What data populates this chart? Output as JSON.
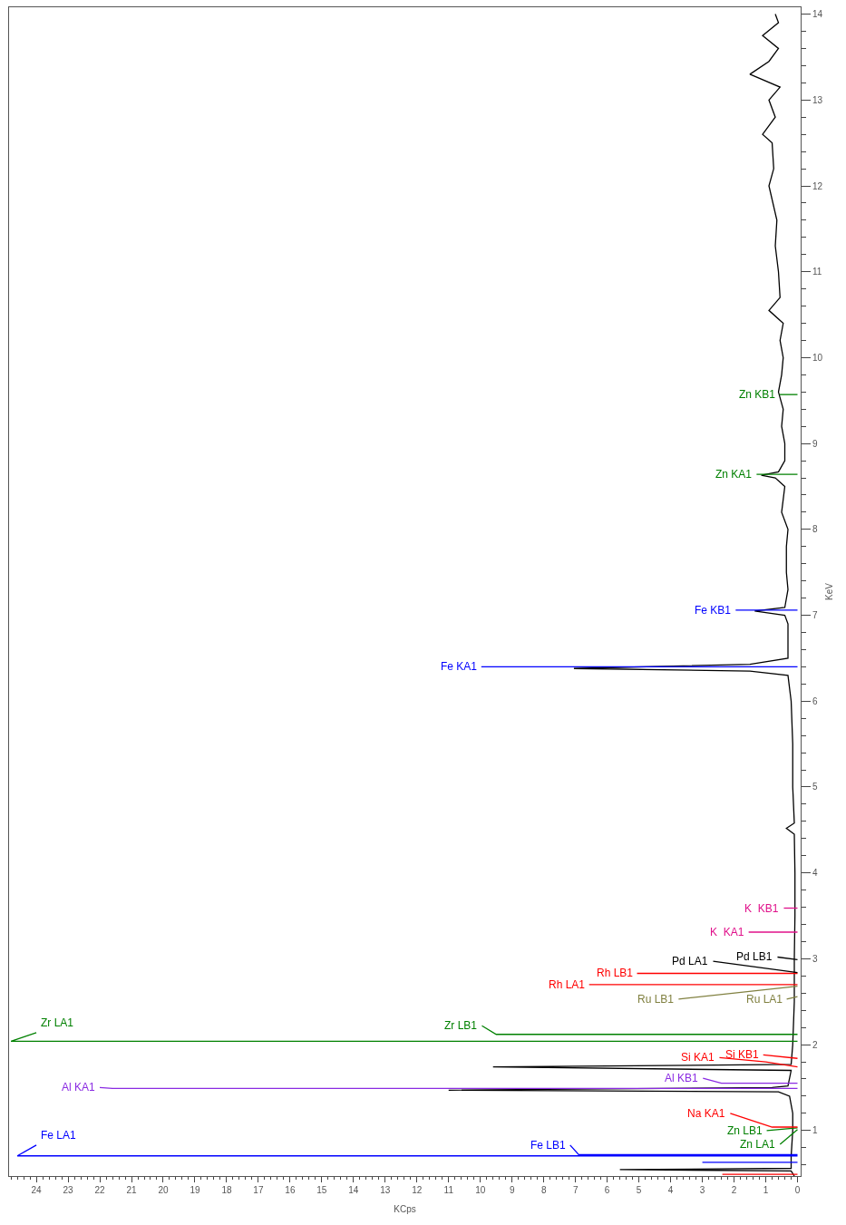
{
  "chart_data": {
    "type": "line",
    "orientation": "horizontal",
    "xlabel": "KCps",
    "ylabel": "KeV",
    "xlim": [
      24.86,
      -0.1
    ],
    "xticks": [
      0,
      1,
      2,
      3,
      4,
      5,
      6,
      7,
      8,
      9,
      10,
      11,
      12,
      13,
      14,
      15,
      16,
      17,
      18,
      19,
      20,
      21,
      22,
      23,
      24
    ],
    "ylim": [
      0.47,
      14.08
    ],
    "yticks": [
      1,
      2,
      3,
      4,
      5,
      6,
      7,
      8,
      9,
      10,
      11,
      12,
      13,
      14
    ],
    "grid": false,
    "legend": false,
    "line_style": "solid",
    "marker": "none",
    "series": [
      {
        "color": "#000000",
        "x": [
          0.47,
          0.53,
          0.545,
          0.56,
          0.7,
          1.0,
          1.2,
          1.4,
          1.45,
          1.47,
          1.5,
          1.52,
          1.7,
          1.74,
          1.77,
          2.0,
          2.5,
          3.0,
          3.5,
          4.0,
          4.45,
          4.52,
          4.58,
          5.0,
          5.5,
          6.0,
          6.3,
          6.35,
          6.38,
          6.43,
          6.5,
          6.9,
          7.0,
          7.05,
          7.09,
          7.3,
          7.5,
          7.8,
          8.0,
          8.2,
          8.5,
          8.6,
          8.63,
          8.67,
          8.8,
          9.0,
          9.2,
          9.4,
          9.6,
          9.8,
          10.0,
          10.2,
          10.4,
          10.55,
          10.7,
          11.0,
          11.3,
          11.6,
          12.0,
          12.2,
          12.5,
          12.6,
          12.8,
          13.0,
          13.15,
          13.3,
          13.45,
          13.6,
          13.75,
          13.9,
          14.0
        ],
        "values": [
          0.1,
          0.2,
          5.6,
          0.2,
          0.2,
          0.15,
          0.15,
          0.25,
          0.6,
          11.0,
          0.8,
          0.3,
          0.2,
          9.6,
          0.2,
          0.15,
          0.1,
          0.1,
          0.08,
          0.08,
          0.1,
          0.35,
          0.1,
          0.15,
          0.15,
          0.2,
          0.3,
          1.5,
          7.05,
          1.5,
          0.3,
          0.3,
          0.4,
          1.35,
          0.4,
          0.3,
          0.35,
          0.35,
          0.3,
          0.5,
          0.4,
          0.7,
          1.14,
          0.6,
          0.4,
          0.4,
          0.5,
          0.45,
          0.6,
          0.5,
          0.45,
          0.55,
          0.45,
          0.9,
          0.55,
          0.6,
          0.7,
          0.65,
          0.9,
          0.75,
          0.8,
          1.1,
          0.7,
          0.9,
          0.55,
          1.5,
          0.9,
          0.6,
          1.1,
          0.6,
          0.7
        ]
      },
      {
        "color": "#ff0000",
        "x": [
          0.49,
          0.49
        ],
        "values": [
          0,
          2.37
        ]
      },
      {
        "color": "#0000ff",
        "x": [
          0.63,
          0.63
        ],
        "values": [
          0,
          3.0
        ]
      },
      {
        "name": "Fe LA1",
        "color": "#0000ff",
        "x": [
          0.705,
          0.705,
          0.83
        ],
        "values": [
          0,
          24.6,
          24.0
        ]
      },
      {
        "name": "Fe LB1",
        "color": "#0000ff",
        "x": [
          0.72,
          0.72,
          0.83
        ],
        "values": [
          0,
          6.9,
          7.17
        ]
      },
      {
        "name": "Zn LA1",
        "color": "#008000",
        "x": [
          1.01,
          0.84
        ],
        "values": [
          0,
          0.55
        ]
      },
      {
        "name": "Zn LB1",
        "color": "#008000",
        "x": [
          1.03,
          1.0
        ],
        "values": [
          0,
          0.97
        ]
      },
      {
        "name": "Na KA1",
        "color": "#ff0000",
        "x": [
          1.04,
          1.04,
          1.2
        ],
        "values": [
          0,
          0.8,
          2.12
        ]
      },
      {
        "name": "Al KA1",
        "color": "#8a2be2",
        "x": [
          1.49,
          1.49,
          1.5
        ],
        "values": [
          0,
          21.6,
          22.0
        ]
      },
      {
        "name": "Al KB1",
        "color": "#8a2be2",
        "x": [
          1.55,
          1.55,
          1.61
        ],
        "values": [
          0,
          2.4,
          2.98
        ]
      },
      {
        "name": "Si KA1",
        "color": "#ff0000",
        "x": [
          1.74,
          1.8,
          1.85
        ],
        "values": [
          0,
          1.0,
          2.46
        ]
      },
      {
        "name": "Si KB1",
        "color": "#ff0000",
        "x": [
          1.84,
          1.88
        ],
        "values": [
          0,
          1.08
        ]
      },
      {
        "name": "Zr LA1",
        "color": "#008000",
        "x": [
          2.04,
          2.04,
          2.14
        ],
        "values": [
          0,
          24.8,
          24.0
        ]
      },
      {
        "name": "Zr LB1",
        "color": "#008000",
        "x": [
          2.12,
          2.12,
          2.22
        ],
        "values": [
          0,
          9.5,
          9.95
        ]
      },
      {
        "name": "Ru LA1",
        "color": "#808040",
        "x": [
          2.56,
          2.53
        ],
        "values": [
          0,
          0.34
        ]
      },
      {
        "name": "Ru LB1",
        "color": "#808040",
        "x": [
          2.68,
          2.53
        ],
        "values": [
          0,
          3.75
        ]
      },
      {
        "name": "Rh LA1",
        "color": "#ff0000",
        "x": [
          2.7,
          2.7
        ],
        "values": [
          0,
          6.57
        ]
      },
      {
        "name": "Rh LB1",
        "color": "#ff0000",
        "x": [
          2.83,
          2.83
        ],
        "values": [
          0,
          5.06
        ]
      },
      {
        "name": "Pd LA1",
        "color": "#000000",
        "x": [
          2.84,
          2.97
        ],
        "values": [
          0,
          2.66
        ]
      },
      {
        "name": "Pd LB1",
        "color": "#000000",
        "x": [
          2.99,
          3.02
        ],
        "values": [
          0,
          0.63
        ]
      },
      {
        "name": "K  KA1",
        "color": "#e0108a",
        "x": [
          3.31,
          3.31
        ],
        "values": [
          0,
          1.54
        ]
      },
      {
        "name": "K  KB1",
        "color": "#e0108a",
        "x": [
          3.59,
          3.59
        ],
        "values": [
          0,
          0.43
        ]
      },
      {
        "name": "Fe KA1",
        "color": "#0000ff",
        "x": [
          6.4,
          6.4
        ],
        "values": [
          0,
          9.97
        ]
      },
      {
        "name": "Fe KB1",
        "color": "#0000ff",
        "x": [
          7.06,
          7.06
        ],
        "values": [
          0,
          1.95
        ]
      },
      {
        "name": "Zn KA1",
        "color": "#008000",
        "x": [
          8.64,
          8.64
        ],
        "values": [
          0,
          1.29
        ]
      },
      {
        "name": "Zn KB1",
        "color": "#008000",
        "x": [
          9.57,
          9.57
        ],
        "values": [
          0,
          0.57
        ]
      }
    ]
  }
}
